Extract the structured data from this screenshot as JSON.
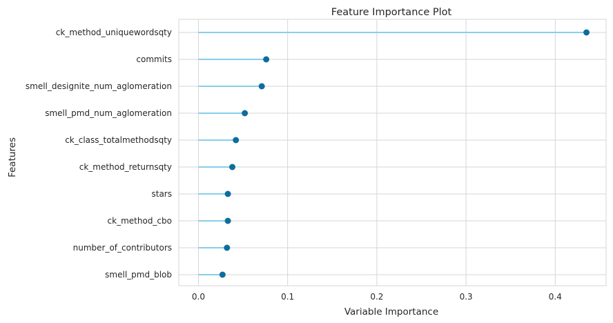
{
  "chart_data": {
    "type": "lollipop",
    "title": "Feature Importance Plot",
    "xlabel": "Variable Importance",
    "ylabel": "Features",
    "xlim": [
      -0.022,
      0.457
    ],
    "xticks": [
      0.0,
      0.1,
      0.2,
      0.3,
      0.4
    ],
    "xtick_labels": [
      "0.0",
      "0.1",
      "0.2",
      "0.3",
      "0.4"
    ],
    "grid": true,
    "colors": {
      "stem": "#87ceeb",
      "dot": "#0e6d9e",
      "grid": "#d5d5d5"
    },
    "categories": [
      "ck_method_uniquewordsqty",
      "commits",
      "smell_designite_num_aglomeration",
      "smell_pmd_num_aglomeration",
      "ck_class_totalmethodsqty",
      "ck_method_returnsqty",
      "stars",
      "ck_method_cbo",
      "number_of_contributors",
      "smell_pmd_blob"
    ],
    "values": [
      0.435,
      0.076,
      0.071,
      0.052,
      0.042,
      0.038,
      0.033,
      0.033,
      0.032,
      0.027
    ]
  }
}
